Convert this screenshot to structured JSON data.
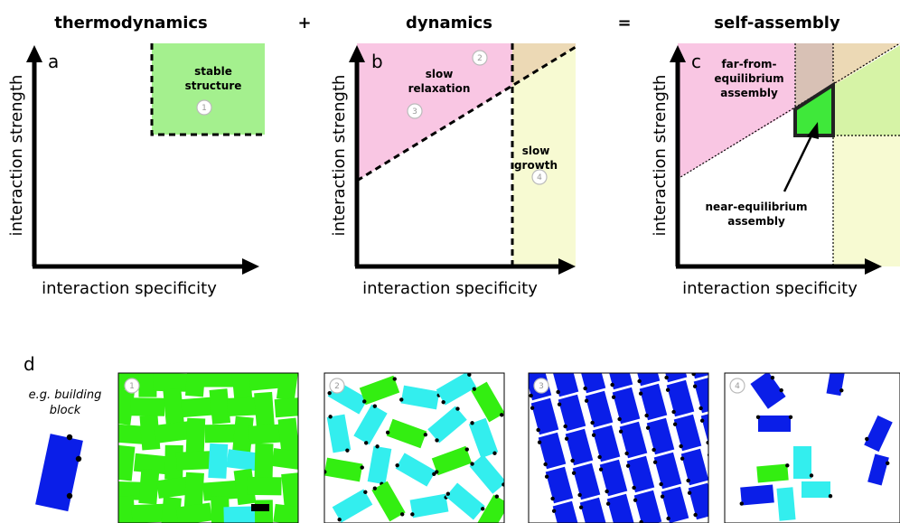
{
  "headers": {
    "thermo": "thermodynamics",
    "plus": "+",
    "dynamics": "dynamics",
    "equals": "=",
    "selfassembly": "self-assembly"
  },
  "panels": {
    "a": "a",
    "b": "b",
    "c": "c",
    "d": "d"
  },
  "axes": {
    "ylabel": "interaction strength",
    "xlabel": "interaction specificity"
  },
  "regions": {
    "stable_structure": [
      "stable",
      "structure"
    ],
    "slow_relaxation": [
      "slow",
      "relaxation"
    ],
    "slow_growth": [
      "slow",
      "growth"
    ],
    "far_from_equilibrium": [
      "far-from-",
      "equilibrium",
      "assembly"
    ],
    "near_equilibrium": [
      "near-equilibrium",
      "assembly"
    ]
  },
  "badges": [
    "1",
    "2",
    "3",
    "4"
  ],
  "building_block": [
    "e.g. building",
    "block"
  ],
  "colors": {
    "green_region": "#a4f08e",
    "pink_region": "#f9c6e3",
    "yellow_region": "#f7fad2",
    "overlap_region": "#ecd9b5",
    "brown_region": "#d8c1b5",
    "near_eq_fill": "#3fe83a",
    "block_green": "#33ee11",
    "block_cyan": "#33eeee",
    "block_blue": "#0a1ee8"
  }
}
